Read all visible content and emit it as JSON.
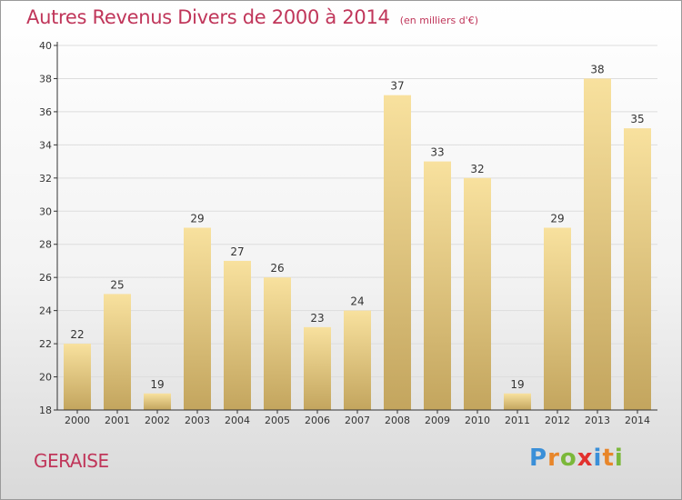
{
  "title": "Autres Revenus Divers de 2000 à 2014",
  "subtitle": "(en milliers d'€)",
  "place": "GERAISE",
  "logo": {
    "text": "Proxiti",
    "letters": [
      {
        "ch": "P",
        "color": "#3a8fd8"
      },
      {
        "ch": "r",
        "color": "#e8862a"
      },
      {
        "ch": "o",
        "color": "#7bb83a"
      },
      {
        "ch": "x",
        "color": "#e2312e"
      },
      {
        "ch": "i",
        "color": "#3a8fd8"
      },
      {
        "ch": "t",
        "color": "#e8862a"
      },
      {
        "ch": "i",
        "color": "#7bb83a"
      }
    ]
  },
  "colors": {
    "title": "#c0365a",
    "bar_light": "#f8e19e",
    "bar_dark": "#c3a55e",
    "axis": "#333333"
  },
  "chart_data": {
    "type": "bar",
    "categories": [
      "2000",
      "2001",
      "2002",
      "2003",
      "2004",
      "2005",
      "2006",
      "2007",
      "2008",
      "2009",
      "2010",
      "2011",
      "2012",
      "2013",
      "2014"
    ],
    "values": [
      22,
      25,
      19,
      29,
      27,
      26,
      23,
      24,
      37,
      33,
      32,
      19,
      29,
      38,
      35
    ],
    "ylim": [
      18,
      40
    ],
    "yticks": [
      18,
      20,
      22,
      24,
      26,
      28,
      30,
      32,
      34,
      36,
      38,
      40
    ],
    "grid": true,
    "xlabel": "",
    "ylabel": ""
  }
}
